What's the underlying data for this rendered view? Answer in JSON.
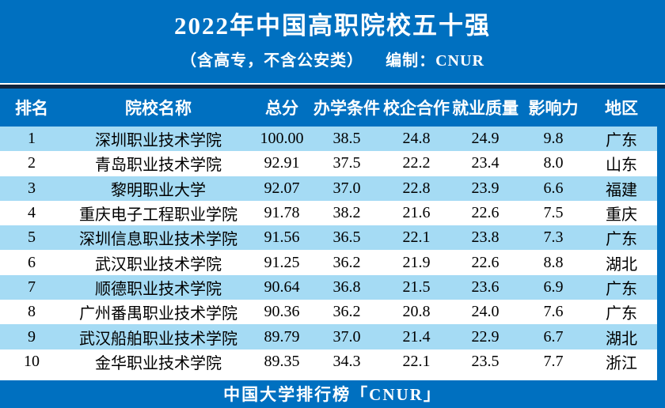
{
  "banner": {
    "title": "2022年中国高职院校五十强",
    "subtitle_left": "（含高专，不含公安类）",
    "subtitle_right": "编制：CNUR"
  },
  "table": {
    "columns": [
      "排名",
      "院校名称",
      "总分",
      "办学条件",
      "校企合作",
      "就业质量",
      "影响力",
      "地区"
    ],
    "rows": [
      [
        "1",
        "深圳职业技术学院",
        "100.00",
        "38.5",
        "24.8",
        "24.9",
        "9.8",
        "广东"
      ],
      [
        "2",
        "青岛职业技术学院",
        "92.91",
        "37.5",
        "22.2",
        "23.4",
        "8.0",
        "山东"
      ],
      [
        "3",
        "黎明职业大学",
        "92.07",
        "37.0",
        "22.8",
        "23.9",
        "6.6",
        "福建"
      ],
      [
        "4",
        "重庆电子工程职业学院",
        "91.78",
        "38.2",
        "21.6",
        "22.6",
        "7.5",
        "重庆"
      ],
      [
        "5",
        "深圳信息职业技术学院",
        "91.56",
        "36.5",
        "22.1",
        "23.8",
        "7.3",
        "广东"
      ],
      [
        "6",
        "武汉职业技术学院",
        "91.25",
        "36.2",
        "21.9",
        "22.6",
        "8.8",
        "湖北"
      ],
      [
        "7",
        "顺德职业技术学院",
        "90.64",
        "36.8",
        "21.5",
        "23.6",
        "6.9",
        "广东"
      ],
      [
        "8",
        "广州番禺职业技术学院",
        "90.36",
        "36.2",
        "20.8",
        "24.0",
        "7.6",
        "广东"
      ],
      [
        "9",
        "武汉船舶职业技术学院",
        "89.79",
        "37.0",
        "21.4",
        "22.9",
        "6.7",
        "湖北"
      ],
      [
        "10",
        "金华职业技术学院",
        "89.35",
        "34.3",
        "22.1",
        "23.5",
        "7.7",
        "浙江"
      ]
    ]
  },
  "footer": {
    "text": "中国大学排行榜「CNUR」"
  },
  "colors": {
    "banner_blue": "#0070C0",
    "dark_rule": "#10243E",
    "stripe_light_blue": "#A5DBF4",
    "text_white": "#FFFFFF",
    "text_black": "#000000"
  },
  "chart_data": {
    "type": "table",
    "title": "2022年中国高职院校五十强",
    "subtitle": "（含高专，不含公安类） 编制：CNUR",
    "columns": [
      "排名",
      "院校名称",
      "总分",
      "办学条件",
      "校企合作",
      "就业质量",
      "影响力",
      "地区"
    ],
    "rows": [
      {
        "rank": 1,
        "name": "深圳职业技术学院",
        "total": 100.0,
        "conditions": 38.5,
        "cooperation": 24.8,
        "employment": 24.9,
        "influence": 9.8,
        "region": "广东"
      },
      {
        "rank": 2,
        "name": "青岛职业技术学院",
        "total": 92.91,
        "conditions": 37.5,
        "cooperation": 22.2,
        "employment": 23.4,
        "influence": 8.0,
        "region": "山东"
      },
      {
        "rank": 3,
        "name": "黎明职业大学",
        "total": 92.07,
        "conditions": 37.0,
        "cooperation": 22.8,
        "employment": 23.9,
        "influence": 6.6,
        "region": "福建"
      },
      {
        "rank": 4,
        "name": "重庆电子工程职业学院",
        "total": 91.78,
        "conditions": 38.2,
        "cooperation": 21.6,
        "employment": 22.6,
        "influence": 7.5,
        "region": "重庆"
      },
      {
        "rank": 5,
        "name": "深圳信息职业技术学院",
        "total": 91.56,
        "conditions": 36.5,
        "cooperation": 22.1,
        "employment": 23.8,
        "influence": 7.3,
        "region": "广东"
      },
      {
        "rank": 6,
        "name": "武汉职业技术学院",
        "total": 91.25,
        "conditions": 36.2,
        "cooperation": 21.9,
        "employment": 22.6,
        "influence": 8.8,
        "region": "湖北"
      },
      {
        "rank": 7,
        "name": "顺德职业技术学院",
        "total": 90.64,
        "conditions": 36.8,
        "cooperation": 21.5,
        "employment": 23.6,
        "influence": 6.9,
        "region": "广东"
      },
      {
        "rank": 8,
        "name": "广州番禺职业技术学院",
        "total": 90.36,
        "conditions": 36.2,
        "cooperation": 20.8,
        "employment": 24.0,
        "influence": 7.6,
        "region": "广东"
      },
      {
        "rank": 9,
        "name": "武汉船舶职业技术学院",
        "total": 89.79,
        "conditions": 37.0,
        "cooperation": 21.4,
        "employment": 22.9,
        "influence": 6.7,
        "region": "湖北"
      },
      {
        "rank": 10,
        "name": "金华职业技术学院",
        "total": 89.35,
        "conditions": 34.3,
        "cooperation": 22.1,
        "employment": 23.5,
        "influence": 7.7,
        "region": "浙江"
      }
    ],
    "footer": "中国大学排行榜「CNUR」"
  }
}
